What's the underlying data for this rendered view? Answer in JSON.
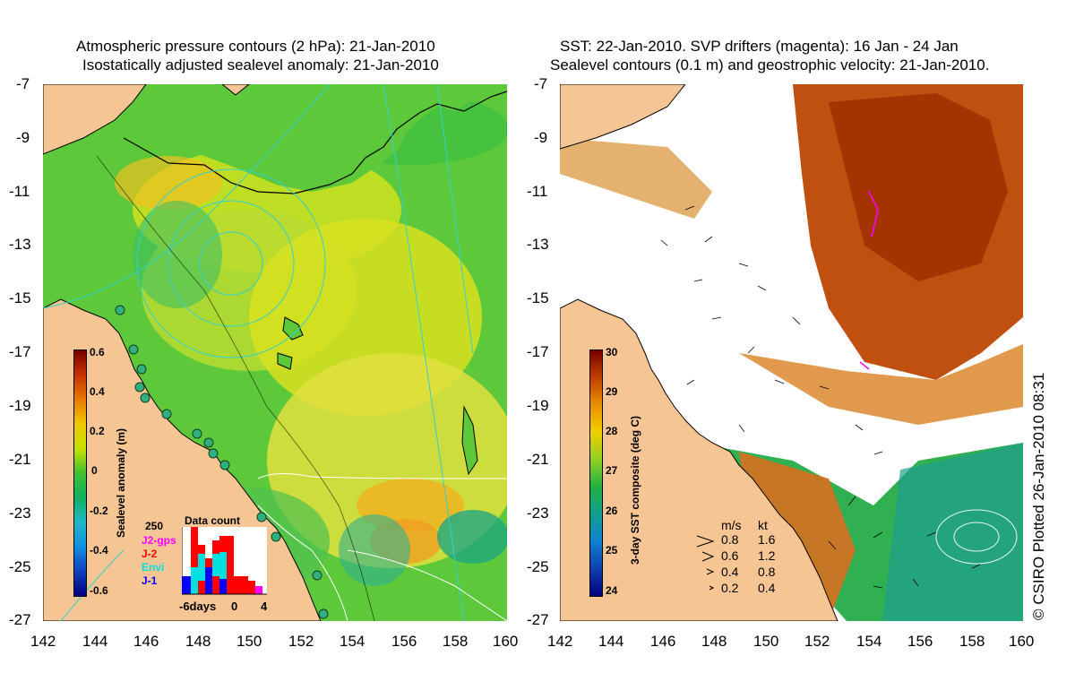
{
  "left_panel": {
    "title_line1": "Atmospheric pressure contours (2 hPa): 21-Jan-2010",
    "title_line2": "Isostatically adjusted sealevel anomaly: 21-Jan-2010",
    "colorbar": {
      "label": "Sealevel anomaly (m)",
      "ticks": [
        "0.6",
        "0.4",
        "0.2",
        "0",
        "-0.2",
        "-0.4",
        "-0.6"
      ],
      "colors": [
        "#7a0000",
        "#c83200",
        "#e87a00",
        "#f0c800",
        "#c8e000",
        "#40c030",
        "#10b060",
        "#20b8c8",
        "#1090e0",
        "#1040c0",
        "#000080"
      ]
    },
    "data_count": {
      "title": "Data count",
      "max_label": "250",
      "legend": [
        {
          "label": "J2-gps",
          "color": "#ff00ff"
        },
        {
          "label": "J-2",
          "color": "#ff0000"
        },
        {
          "label": "Envi",
          "color": "#00e0e0"
        },
        {
          "label": "J-1",
          "color": "#0000ff"
        }
      ],
      "x_labels": [
        "-6days",
        "0",
        "4"
      ]
    }
  },
  "right_panel": {
    "title_line1": "SST: 22-Jan-2010. SVP drifters (magenta): 16 Jan - 24 Jan",
    "title_line2": "Sealevel contours (0.1 m) and geostrophic velocity: 21-Jan-2010.",
    "colorbar": {
      "label": "3-day SST composite (deg C)",
      "ticks": [
        "30",
        "29",
        "28",
        "27",
        "26",
        "25",
        "24"
      ],
      "colors": [
        "#7a0000",
        "#c04000",
        "#e89000",
        "#f0d000",
        "#90d020",
        "#20b040",
        "#10a090",
        "#1080d0",
        "#1040b0",
        "#000080"
      ]
    },
    "velocity_legend": {
      "header_ms": "m/s",
      "header_kt": "kt",
      "rows": [
        {
          "ms": "0.8",
          "kt": "1.6"
        },
        {
          "ms": "0.6",
          "kt": "1.2"
        },
        {
          "ms": "0.4",
          "kt": "0.8"
        },
        {
          "ms": "0.2",
          "kt": "0.4"
        }
      ]
    },
    "credit": "© CSIRO Plotted 26-Jan-2010 08:31"
  },
  "axes": {
    "y_ticks": [
      "-7",
      "-9",
      "-11",
      "-13",
      "-15",
      "-17",
      "-19",
      "-21",
      "-23",
      "-25",
      "-27"
    ],
    "x_ticks": [
      "142",
      "144",
      "146",
      "148",
      "150",
      "152",
      "154",
      "156",
      "158",
      "160"
    ]
  },
  "colors": {
    "land": "#f5c594",
    "ocean_base": "#5cc83a",
    "cloud": "#ffffff"
  }
}
